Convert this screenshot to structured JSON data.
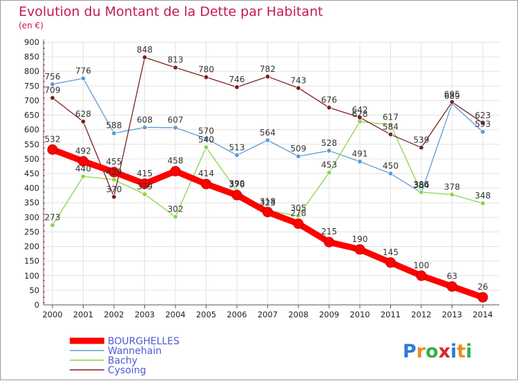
{
  "chart_data": {
    "type": "line",
    "title": "Evolution du Montant de la Dette par Habitant",
    "subtitle": "(en €)",
    "xlabel": "",
    "ylabel": "",
    "ylim": [
      0,
      900
    ],
    "yticks": [
      0,
      50,
      100,
      150,
      200,
      250,
      300,
      350,
      400,
      450,
      500,
      550,
      600,
      650,
      700,
      750,
      800,
      850,
      900
    ],
    "grid": true,
    "legend_position": "bottom-left",
    "categories": [
      "2000",
      "2001",
      "2002",
      "2003",
      "2004",
      "2005",
      "2006",
      "2007",
      "2008",
      "2009",
      "2010",
      "2011",
      "2012",
      "2013",
      "2014"
    ],
    "series": [
      {
        "name": "BOURGHELLES",
        "color": "#ff0000",
        "emphasis": true,
        "values": [
          532,
          492,
          455,
          415,
          458,
          414,
          376,
          318,
          278,
          215,
          190,
          145,
          100,
          63,
          26
        ]
      },
      {
        "name": "Wannehain",
        "color": "#5b9bd5",
        "emphasis": false,
        "values": [
          756,
          776,
          588,
          608,
          607,
          570,
          513,
          564,
          509,
          528,
          491,
          450,
          384,
          689,
          593
        ]
      },
      {
        "name": "Bachy",
        "color": "#8bd44a",
        "emphasis": false,
        "values": [
          273,
          440,
          429,
          379,
          302,
          540,
          390,
          323,
          305,
          453,
          628,
          617,
          386,
          378,
          348
        ]
      },
      {
        "name": "Cysoing",
        "color": "#7b2020",
        "emphasis": false,
        "values": [
          709,
          628,
          370,
          848,
          813,
          780,
          746,
          782,
          743,
          676,
          642,
          584,
          539,
          695,
          623
        ]
      }
    ]
  },
  "logo": {
    "text": "Proxiti",
    "letters": [
      "P",
      "r",
      "o",
      "x",
      "i",
      "t",
      "i"
    ],
    "colors": [
      "#2e7bd6",
      "#f08a1c",
      "#2fae4a",
      "#d6262a",
      "#2e7bd6",
      "#f08a1c",
      "#2fae4a"
    ]
  }
}
